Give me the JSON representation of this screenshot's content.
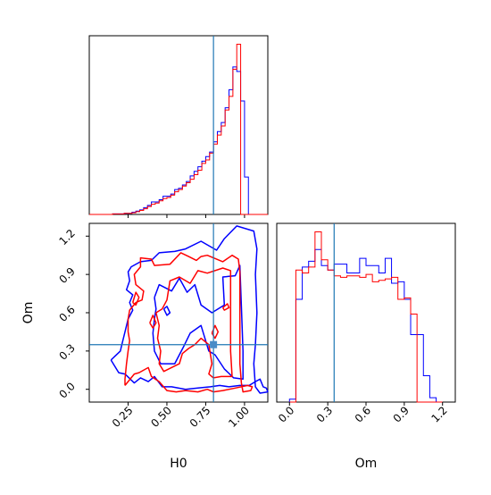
{
  "chart_data": [
    {
      "type": "histogram",
      "panel": "H0 marginal",
      "x_range": [
        0.0,
        1.15
      ],
      "bins": [
        0.0,
        0.025,
        0.05,
        0.075,
        0.1,
        0.125,
        0.15,
        0.175,
        0.2,
        0.225,
        0.25,
        0.275,
        0.3,
        0.325,
        0.35,
        0.375,
        0.4,
        0.425,
        0.45,
        0.475,
        0.5,
        0.525,
        0.55,
        0.575,
        0.6,
        0.625,
        0.65,
        0.675,
        0.7,
        0.725,
        0.75,
        0.775,
        0.8,
        0.825,
        0.85,
        0.875,
        0.9,
        0.925,
        0.95,
        0.975,
        1.0,
        1.025,
        1.05,
        1.075,
        1.1,
        1.125,
        1.15
      ],
      "series": [
        {
          "color": "#0000ff",
          "values": [
            0,
            0,
            0,
            0,
            0,
            0,
            0.5,
            0.5,
            0.5,
            1,
            1,
            2,
            3,
            4,
            6,
            8,
            11,
            11,
            13,
            16,
            16,
            18,
            22,
            23,
            26,
            29,
            34,
            38,
            42,
            47,
            51,
            55,
            64,
            73,
            81,
            94,
            110,
            130,
            126,
            100,
            33,
            0,
            0,
            0,
            0,
            0
          ]
        },
        {
          "color": "#ff0000",
          "values": [
            0,
            0,
            0,
            0,
            0,
            0,
            0.5,
            0.5,
            0.5,
            1,
            1,
            1.5,
            2.5,
            3.5,
            5,
            7,
            9,
            10,
            12,
            14,
            15,
            17,
            20,
            22,
            25,
            28,
            31,
            35,
            39,
            45,
            48,
            54,
            62,
            70,
            78,
            92,
            104,
            128,
            150,
            0,
            0,
            0,
            0,
            0,
            0,
            0
          ]
        }
      ],
      "truth_line": 0.8
    },
    {
      "type": "histogram",
      "panel": "Om marginal",
      "xlabel": "Om",
      "x_range": [
        -0.1,
        1.3
      ],
      "xticks": [
        "0.0",
        "0.3",
        "0.6",
        "0.9",
        "1.2"
      ],
      "bins": [
        0.0,
        0.05,
        0.1,
        0.15,
        0.2,
        0.25,
        0.3,
        0.35,
        0.4,
        0.45,
        0.5,
        0.55,
        0.6,
        0.65,
        0.7,
        0.75,
        0.8,
        0.85,
        0.9,
        0.95,
        1.0,
        1.05,
        1.1,
        1.15,
        1.2
      ],
      "series": [
        {
          "color": "#0000ff",
          "values": [
            2,
            70,
            92,
            96,
            104,
            93,
            90,
            94,
            94,
            88,
            88,
            98,
            93,
            93,
            88,
            98,
            81,
            82,
            70,
            46,
            46,
            18,
            3,
            0
          ]
        },
        {
          "color": "#ff0000",
          "values": [
            0,
            90,
            88,
            92,
            116,
            97,
            90,
            86,
            85,
            86,
            86,
            85,
            87,
            82,
            83,
            84,
            85,
            70,
            71,
            60,
            0,
            0,
            0,
            0
          ]
        }
      ],
      "truth_line": 0.35
    },
    {
      "type": "contour",
      "panel": "Om vs H0",
      "xlabel": "H0",
      "ylabel": "Om",
      "x_range": [
        0.0,
        1.15
      ],
      "y_range": [
        -0.1,
        1.3
      ],
      "xticks": [
        "0.25",
        "0.50",
        "0.75",
        "1.00"
      ],
      "yticks": [
        "0.0",
        "0.3",
        "0.6",
        "0.9",
        "1.2"
      ],
      "series": [
        {
          "color": "#0000ff",
          "contours": [
            [
              [
                0.14,
                0.23
              ],
              [
                0.19,
                0.13
              ],
              [
                0.23,
                0.12
              ],
              [
                0.29,
                0.05
              ],
              [
                0.33,
                0.09
              ],
              [
                0.38,
                0.06
              ],
              [
                0.42,
                0.1
              ],
              [
                0.47,
                0.02
              ],
              [
                0.53,
                0.02
              ],
              [
                0.62,
                0.0
              ],
              [
                0.7,
                0.01
              ],
              [
                0.78,
                0.02
              ],
              [
                0.84,
                0.03
              ],
              [
                0.9,
                0.02
              ],
              [
                0.97,
                0.03
              ],
              [
                1.03,
                0.03
              ],
              [
                1.07,
                0.06
              ],
              [
                1.1,
                0.08
              ],
              [
                1.12,
                0.02
              ],
              [
                1.14,
                0.01
              ],
              [
                1.15,
                -0.02
              ],
              [
                1.1,
                -0.03
              ],
              [
                1.07,
                0.02
              ],
              [
                1.06,
                0.2
              ],
              [
                1.07,
                0.35
              ],
              [
                1.08,
                0.6
              ],
              [
                1.07,
                0.9
              ],
              [
                1.08,
                1.1
              ],
              [
                1.06,
                1.24
              ],
              [
                0.95,
                1.28
              ],
              [
                0.87,
                1.18
              ],
              [
                0.82,
                1.09
              ],
              [
                0.72,
                1.16
              ],
              [
                0.62,
                1.1
              ],
              [
                0.55,
                1.08
              ],
              [
                0.45,
                1.07
              ],
              [
                0.4,
                1.01
              ],
              [
                0.33,
                1.0
              ],
              [
                0.27,
                0.96
              ],
              [
                0.25,
                0.92
              ],
              [
                0.26,
                0.85
              ],
              [
                0.24,
                0.78
              ],
              [
                0.28,
                0.74
              ],
              [
                0.26,
                0.68
              ],
              [
                0.28,
                0.62
              ],
              [
                0.25,
                0.55
              ],
              [
                0.23,
                0.45
              ],
              [
                0.21,
                0.35
              ],
              [
                0.2,
                0.3
              ],
              [
                0.14,
                0.23
              ]
            ],
            [
              [
                0.42,
                0.72
              ],
              [
                0.45,
                0.82
              ],
              [
                0.53,
                0.77
              ],
              [
                0.58,
                0.87
              ],
              [
                0.63,
                0.76
              ],
              [
                0.68,
                0.82
              ],
              [
                0.72,
                0.66
              ],
              [
                0.79,
                0.6
              ],
              [
                0.87,
                0.66
              ],
              [
                0.86,
                0.88
              ],
              [
                0.94,
                0.89
              ],
              [
                0.97,
                0.97
              ],
              [
                0.98,
                0.65
              ],
              [
                0.99,
                0.3
              ],
              [
                0.99,
                0.08
              ],
              [
                0.93,
                0.09
              ],
              [
                0.87,
                0.16
              ],
              [
                0.81,
                0.27
              ],
              [
                0.77,
                0.3
              ],
              [
                0.72,
                0.5
              ],
              [
                0.65,
                0.44
              ],
              [
                0.61,
                0.34
              ],
              [
                0.55,
                0.2
              ],
              [
                0.46,
                0.2
              ],
              [
                0.42,
                0.3
              ],
              [
                0.41,
                0.44
              ],
              [
                0.42,
                0.55
              ],
              [
                0.43,
                0.63
              ],
              [
                0.42,
                0.72
              ]
            ],
            [
              [
                0.48,
                0.63
              ],
              [
                0.5,
                0.58
              ],
              [
                0.52,
                0.6
              ],
              [
                0.5,
                0.65
              ],
              [
                0.48,
                0.63
              ]
            ]
          ]
        },
        {
          "color": "#ff0000",
          "contours": [
            [
              [
                0.23,
                0.03
              ],
              [
                0.29,
                0.12
              ],
              [
                0.32,
                0.13
              ],
              [
                0.38,
                0.17
              ],
              [
                0.4,
                0.1
              ],
              [
                0.45,
                0.06
              ],
              [
                0.5,
                -0.01
              ],
              [
                0.56,
                -0.02
              ],
              [
                0.62,
                -0.01
              ],
              [
                0.7,
                -0.02
              ],
              [
                0.76,
                0.0
              ],
              [
                0.8,
                -0.02
              ],
              [
                0.86,
                -0.01
              ],
              [
                0.94,
                0.01
              ],
              [
                1.02,
                0.03
              ],
              [
                1.05,
                0.02
              ],
              [
                1.04,
                -0.01
              ],
              [
                0.99,
                -0.02
              ],
              [
                0.98,
                0.05
              ],
              [
                0.97,
                0.2
              ],
              [
                0.97,
                0.55
              ],
              [
                0.97,
                0.75
              ],
              [
                0.97,
                0.92
              ],
              [
                0.96,
                1.02
              ],
              [
                0.92,
                1.05
              ],
              [
                0.86,
                1.0
              ],
              [
                0.76,
                1.05
              ],
              [
                0.72,
                1.04
              ],
              [
                0.69,
                1.01
              ],
              [
                0.64,
                1.04
              ],
              [
                0.59,
                1.07
              ],
              [
                0.52,
                0.98
              ],
              [
                0.42,
                0.97
              ],
              [
                0.4,
                1.02
              ],
              [
                0.33,
                1.03
              ],
              [
                0.33,
                0.96
              ],
              [
                0.29,
                0.9
              ],
              [
                0.3,
                0.82
              ],
              [
                0.35,
                0.77
              ],
              [
                0.34,
                0.7
              ],
              [
                0.3,
                0.68
              ],
              [
                0.26,
                0.62
              ],
              [
                0.25,
                0.55
              ],
              [
                0.25,
                0.45
              ],
              [
                0.26,
                0.38
              ],
              [
                0.25,
                0.3
              ],
              [
                0.24,
                0.2
              ],
              [
                0.23,
                0.08
              ],
              [
                0.23,
                0.03
              ]
            ],
            [
              [
                0.5,
                0.7
              ],
              [
                0.52,
                0.85
              ],
              [
                0.58,
                0.88
              ],
              [
                0.65,
                0.83
              ],
              [
                0.7,
                0.93
              ],
              [
                0.76,
                0.91
              ],
              [
                0.86,
                0.95
              ],
              [
                0.91,
                0.93
              ],
              [
                0.91,
                0.55
              ],
              [
                0.91,
                0.3
              ],
              [
                0.92,
                0.1
              ],
              [
                0.85,
                0.1
              ],
              [
                0.8,
                0.09
              ],
              [
                0.77,
                0.12
              ],
              [
                0.79,
                0.2
              ],
              [
                0.77,
                0.35
              ],
              [
                0.72,
                0.4
              ],
              [
                0.68,
                0.35
              ],
              [
                0.64,
                0.32
              ],
              [
                0.6,
                0.28
              ],
              [
                0.58,
                0.2
              ],
              [
                0.48,
                0.14
              ],
              [
                0.45,
                0.2
              ],
              [
                0.46,
                0.3
              ],
              [
                0.44,
                0.4
              ],
              [
                0.45,
                0.5
              ],
              [
                0.43,
                0.6
              ],
              [
                0.47,
                0.63
              ],
              [
                0.5,
                0.7
              ]
            ],
            [
              [
                0.28,
                0.68
              ],
              [
                0.3,
                0.76
              ],
              [
                0.32,
                0.72
              ],
              [
                0.3,
                0.66
              ],
              [
                0.28,
                0.68
              ]
            ],
            [
              [
                0.39,
                0.52
              ],
              [
                0.41,
                0.58
              ],
              [
                0.43,
                0.52
              ],
              [
                0.41,
                0.48
              ],
              [
                0.39,
                0.52
              ]
            ],
            [
              [
                0.79,
                0.44
              ],
              [
                0.81,
                0.5
              ],
              [
                0.83,
                0.45
              ],
              [
                0.81,
                0.4
              ],
              [
                0.79,
                0.44
              ]
            ],
            [
              [
                0.86,
                0.64
              ],
              [
                0.89,
                0.67
              ],
              [
                0.9,
                0.64
              ],
              [
                0.87,
                0.62
              ],
              [
                0.86,
                0.64
              ]
            ]
          ]
        }
      ],
      "truth_lines": {
        "x": 0.8,
        "y": 0.35
      },
      "marker": {
        "x": 0.8,
        "y": 0.35
      }
    }
  ]
}
